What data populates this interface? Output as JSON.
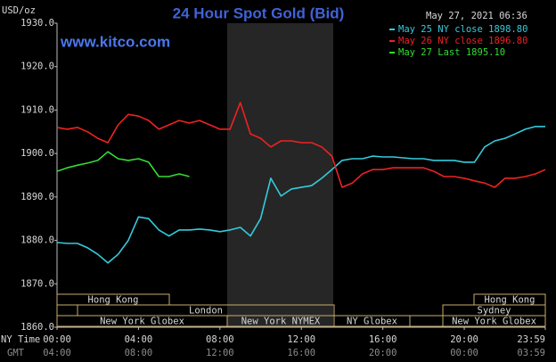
{
  "chart_data": {
    "type": "line",
    "title": "24 Hour Spot Gold (Bid)",
    "subtitle": "www.kitco.com",
    "timestamp": "May 27, 2021 06:36",
    "ylabel": "USD/oz",
    "xlabel": "NY Time",
    "x2label": "GMT",
    "x": [
      0,
      0.5,
      1,
      1.5,
      2,
      2.5,
      3,
      3.5,
      4,
      4.5,
      5,
      5.5,
      6,
      6.5,
      7,
      7.5,
      8,
      8.5,
      9,
      9.5,
      10,
      10.5,
      11,
      11.5,
      12,
      12.5,
      13,
      13.5,
      14,
      14.5,
      15,
      15.5,
      16,
      16.5,
      17,
      17.5,
      18,
      18.5,
      19,
      19.5,
      20,
      20.5,
      21,
      21.5,
      22,
      22.5,
      23,
      23.5,
      23.98
    ],
    "xlim": [
      0,
      23.98
    ],
    "xticks": [
      {
        "value": 0,
        "label": "00:00"
      },
      {
        "value": 4,
        "label": "04:00"
      },
      {
        "value": 8,
        "label": "08:00"
      },
      {
        "value": 12,
        "label": "12:00"
      },
      {
        "value": 16,
        "label": "16:00"
      },
      {
        "value": 20,
        "label": "20:00"
      },
      {
        "value": 23.98,
        "label": "23:59"
      }
    ],
    "x2ticks": [
      {
        "value": 0,
        "label": "04:00"
      },
      {
        "value": 4,
        "label": "08:00"
      },
      {
        "value": 8,
        "label": "12:00"
      },
      {
        "value": 12,
        "label": "16:00"
      },
      {
        "value": 16,
        "label": "20:00"
      },
      {
        "value": 20,
        "label": "00:00"
      },
      {
        "value": 23.98,
        "label": "03:59"
      }
    ],
    "ylim": [
      1860,
      1930
    ],
    "yticks": [
      {
        "value": 1860,
        "label": "1860.0"
      },
      {
        "value": 1870,
        "label": "1870.0"
      },
      {
        "value": 1880,
        "label": "1880.0"
      },
      {
        "value": 1890,
        "label": "1890.0"
      },
      {
        "value": 1900,
        "label": "1900.0"
      },
      {
        "value": 1910,
        "label": "1910.0"
      },
      {
        "value": 1920,
        "label": "1920.0"
      },
      {
        "value": 1930,
        "label": "1930.0"
      }
    ],
    "series": [
      {
        "name": "May 25 NY close 1898.80",
        "color": "#33ccdd",
        "values": [
          1879.5,
          1879.3,
          1879.3,
          1878.3,
          1876.8,
          1874.8,
          1876.8,
          1880,
          1885.4,
          1885,
          1882.4,
          1881,
          1882.4,
          1882.4,
          1882.6,
          1882.4,
          1882,
          1882.4,
          1883,
          1881,
          1885,
          1894.3,
          1890.2,
          1891.8,
          1892.2,
          1892.6,
          1894.3,
          1896.3,
          1898.4,
          1898.8,
          1898.8,
          1899.4,
          1899.2,
          1899.2,
          1899,
          1898.8,
          1898.8,
          1898.4,
          1898.4,
          1898.4,
          1898,
          1898,
          1901.5,
          1902.9,
          1903.5,
          1904.5,
          1905.6,
          1906.2,
          1906.2
        ]
      },
      {
        "name": "May 26 NY close 1896.80",
        "color": "#ee2222",
        "values": [
          1906,
          1905.6,
          1906,
          1905,
          1903.5,
          1902.5,
          1906.6,
          1909,
          1908.6,
          1907.6,
          1905.6,
          1906.6,
          1907.6,
          1907,
          1907.6,
          1906.6,
          1905.6,
          1905.6,
          1911.7,
          1904.5,
          1903.5,
          1901.5,
          1902.9,
          1902.9,
          1902.5,
          1902.5,
          1901.5,
          1899.4,
          1892.2,
          1893.2,
          1895.3,
          1896.3,
          1896.3,
          1896.7,
          1896.7,
          1896.7,
          1896.7,
          1895.9,
          1894.7,
          1894.7,
          1894.3,
          1893.7,
          1893.2,
          1892.2,
          1894.3,
          1894.3,
          1894.7,
          1895.3,
          1896.3
        ]
      },
      {
        "name": "May 27 Last 1895.10",
        "color": "#33dd33",
        "values": [
          1895.9,
          1896.7,
          1897.3,
          1897.8,
          1898.4,
          1900.4,
          1898.8,
          1898.4,
          1898.8,
          1898,
          1894.7,
          1894.7,
          1895.3,
          1894.7,
          null,
          null,
          null,
          null,
          null,
          null,
          null,
          null,
          null,
          null,
          null,
          null,
          null,
          null,
          null,
          null,
          null,
          null,
          null,
          null,
          null,
          null,
          null,
          null,
          null,
          null,
          null,
          null,
          null,
          null,
          null,
          null,
          null,
          null,
          null
        ]
      }
    ],
    "sessions": [
      "Hong Kong",
      "Hong Kong",
      "London",
      "Sydney",
      "New York Globex",
      "New York NYMEX",
      "NY Globex",
      "New York Globex"
    ]
  }
}
